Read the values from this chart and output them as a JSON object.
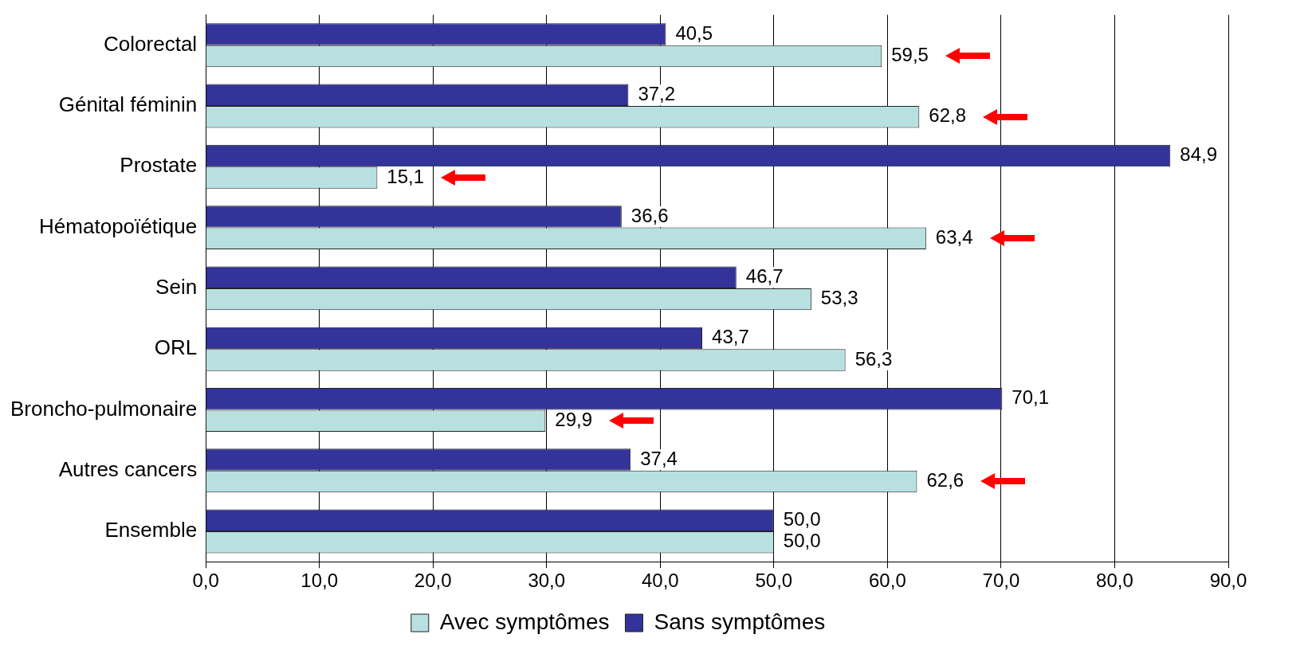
{
  "chart_data": {
    "type": "bar",
    "orientation": "horizontal",
    "categories": [
      "Colorectal",
      "Génital féminin",
      "Prostate",
      "Hématopoïétique",
      "Sein",
      "ORL",
      "Broncho-pulmonaire",
      "Autres cancers",
      "Ensemble"
    ],
    "series": [
      {
        "name": "Avec symptômes",
        "color": "#b8e0e0",
        "values": [
          59.5,
          62.8,
          15.1,
          63.4,
          53.3,
          56.3,
          29.9,
          62.6,
          50.0
        ],
        "value_labels": [
          "59,5",
          "62,8",
          "15,1",
          "63,4",
          "53,3",
          "56,3",
          "29,9",
          "62,6",
          "50,0"
        ]
      },
      {
        "name": "Sans symptômes",
        "color": "#333399",
        "values": [
          40.5,
          37.2,
          84.9,
          36.6,
          46.7,
          43.7,
          70.1,
          37.4,
          50.0
        ],
        "value_labels": [
          "40,5",
          "37,2",
          "84,9",
          "36,6",
          "46,7",
          "43,7",
          "70,1",
          "37,4",
          "50,0"
        ]
      }
    ],
    "xlim": [
      0,
      90
    ],
    "xticks": [
      {
        "value": 0,
        "label": "0,0"
      },
      {
        "value": 10,
        "label": "10,0"
      },
      {
        "value": 20,
        "label": "20,0"
      },
      {
        "value": 30,
        "label": "30,0"
      },
      {
        "value": 40,
        "label": "40,0"
      },
      {
        "value": 50,
        "label": "50,0"
      },
      {
        "value": 60,
        "label": "60,0"
      },
      {
        "value": 70,
        "label": "70,0"
      },
      {
        "value": 80,
        "label": "80,0"
      },
      {
        "value": 90,
        "label": "90,0"
      }
    ],
    "grid": "x",
    "legend": "bottom"
  }
}
